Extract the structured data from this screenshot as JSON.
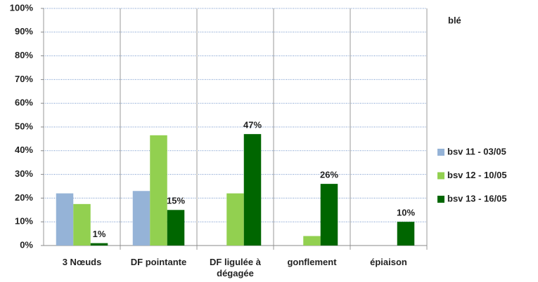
{
  "chart_data": {
    "type": "bar",
    "title": "blé",
    "categories": [
      "3 Nœuds",
      "DF pointante",
      "DF ligulée à dégagée",
      "gonflement",
      "épiaison"
    ],
    "series": [
      {
        "name": "bsv 11 - 03/05",
        "color": "#95b3d7",
        "values": [
          22,
          23,
          0,
          0,
          0
        ]
      },
      {
        "name": "bsv 12 - 10/05",
        "color": "#92d050",
        "values": [
          17.5,
          46.5,
          22,
          4,
          0
        ]
      },
      {
        "name": "bsv 13 - 16/05",
        "color": "#006600",
        "values": [
          1,
          15,
          47,
          26,
          10
        ],
        "value_labels": [
          "1%",
          "15%",
          "47%",
          "26%",
          "10%"
        ]
      }
    ],
    "ylim": [
      0,
      100
    ],
    "yticks": [
      {
        "value": 0,
        "label": "0%"
      },
      {
        "value": 10,
        "label": "10%"
      },
      {
        "value": 20,
        "label": "20%"
      },
      {
        "value": 30,
        "label": "30%"
      },
      {
        "value": 40,
        "label": "40%"
      },
      {
        "value": 50,
        "label": "50%"
      },
      {
        "value": 60,
        "label": "60%"
      },
      {
        "value": 70,
        "label": "70%"
      },
      {
        "value": 80,
        "label": "80%"
      },
      {
        "value": 90,
        "label": "90%"
      },
      {
        "value": 100,
        "label": "100%"
      }
    ],
    "grid": true
  }
}
